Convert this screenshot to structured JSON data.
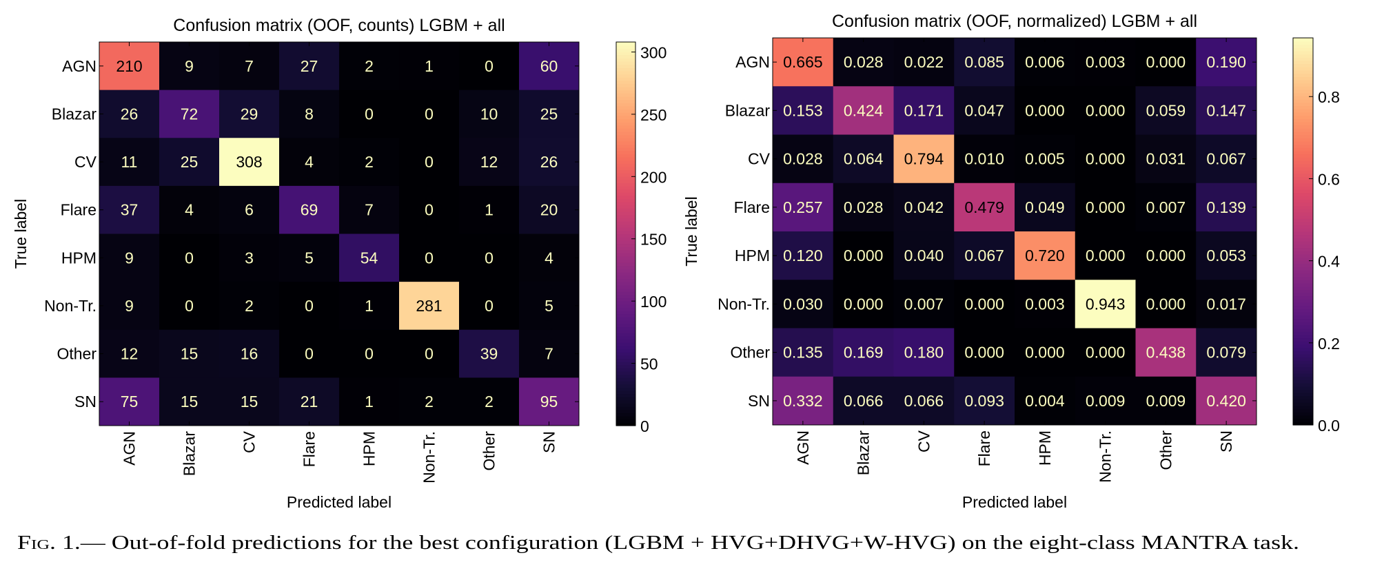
{
  "chart_data": [
    {
      "type": "heatmap",
      "title": "Confusion matrix (OOF, counts) LGBM + all",
      "xlabel": "Predicted label",
      "ylabel": "True label",
      "x_categories": [
        "AGN",
        "Blazar",
        "CV",
        "Flare",
        "HPM",
        "Non-Tr.",
        "Other",
        "SN"
      ],
      "y_categories": [
        "AGN",
        "Blazar",
        "CV",
        "Flare",
        "HPM",
        "Non-Tr.",
        "Other",
        "SN"
      ],
      "values": [
        [
          210,
          9,
          7,
          27,
          2,
          1,
          0,
          60
        ],
        [
          26,
          72,
          29,
          8,
          0,
          0,
          10,
          25
        ],
        [
          11,
          25,
          308,
          4,
          2,
          0,
          12,
          26
        ],
        [
          37,
          4,
          6,
          69,
          7,
          0,
          1,
          20
        ],
        [
          9,
          0,
          3,
          5,
          54,
          0,
          0,
          4
        ],
        [
          9,
          0,
          2,
          0,
          1,
          281,
          0,
          5
        ],
        [
          12,
          15,
          16,
          0,
          0,
          0,
          39,
          7
        ],
        [
          75,
          15,
          15,
          21,
          1,
          2,
          2,
          95
        ]
      ],
      "value_format": "int",
      "colormap": "magma",
      "colorbar": {
        "range": [
          0,
          308
        ],
        "ticks": [
          0,
          50,
          100,
          150,
          200,
          250,
          300
        ],
        "tick_labels": [
          "0",
          "50",
          "100",
          "150",
          "200",
          "250",
          "300"
        ]
      }
    },
    {
      "type": "heatmap",
      "title": "Confusion matrix (OOF, normalized) LGBM + all",
      "xlabel": "Predicted label",
      "ylabel": "True label",
      "x_categories": [
        "AGN",
        "Blazar",
        "CV",
        "Flare",
        "HPM",
        "Non-Tr.",
        "Other",
        "SN"
      ],
      "y_categories": [
        "AGN",
        "Blazar",
        "CV",
        "Flare",
        "HPM",
        "Non-Tr.",
        "Other",
        "SN"
      ],
      "values": [
        [
          0.665,
          0.028,
          0.022,
          0.085,
          0.006,
          0.003,
          0.0,
          0.19
        ],
        [
          0.153,
          0.424,
          0.171,
          0.047,
          0.0,
          0.0,
          0.059,
          0.147
        ],
        [
          0.028,
          0.064,
          0.794,
          0.01,
          0.005,
          0.0,
          0.031,
          0.067
        ],
        [
          0.257,
          0.028,
          0.042,
          0.479,
          0.049,
          0.0,
          0.007,
          0.139
        ],
        [
          0.12,
          0.0,
          0.04,
          0.067,
          0.72,
          0.0,
          0.0,
          0.053
        ],
        [
          0.03,
          0.0,
          0.007,
          0.0,
          0.003,
          0.943,
          0.0,
          0.017
        ],
        [
          0.135,
          0.169,
          0.18,
          0.0,
          0.0,
          0.0,
          0.438,
          0.079
        ],
        [
          0.332,
          0.066,
          0.066,
          0.093,
          0.004,
          0.009,
          0.009,
          0.42
        ]
      ],
      "value_format": "3dp",
      "colormap": "magma",
      "colorbar": {
        "range": [
          0,
          0.943
        ],
        "ticks": [
          0,
          0.2,
          0.4,
          0.6,
          0.8
        ],
        "tick_labels": [
          "0.0",
          "0.2",
          "0.4",
          "0.6",
          "0.8"
        ]
      }
    }
  ],
  "caption": {
    "label": "Fig. 1.—",
    "text": " Out-of-fold predictions for the best configuration (LGBM + HVG+DHVG+W-HVG) on the eight-class MANTRA task."
  },
  "colors": {
    "text_light": "#fcfdbf",
    "text_dark": "#000000"
  }
}
